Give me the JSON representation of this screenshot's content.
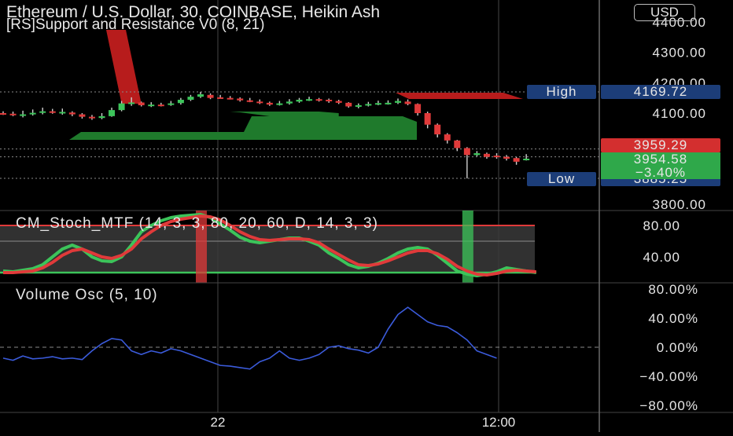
{
  "header": {
    "title": "Ethereum / U.S. Dollar, 30, COINBASE, Heikin Ash",
    "indicator": "[RS]Support and Resistance V0 (8, 21)",
    "currency": "USD"
  },
  "colors": {
    "background": "#000000",
    "up": "#3cc45a",
    "down": "#e03a3a",
    "support_zone": "#1f7a2c",
    "resistance_zone": "#b71c1c",
    "label_bg": "#1c3d78",
    "volume_line": "#3b5bdb"
  },
  "price_labels": {
    "high_tag": "High",
    "high_value": "4169.72",
    "low_tag": "Low",
    "low_value": "3885.25",
    "last_red": "3959.29",
    "last_green": "3954.58",
    "change": "−3.40%"
  },
  "stoch_title": "CM_Stoch_MTF (14, 3, 3, 80, 20, 60, D, 14, 3, 3)",
  "volume_title": "Volume Osc (5, 10)",
  "chart_data": [
    {
      "type": "candlestick",
      "title": "Ethereum / U.S. Dollar, 30, COINBASE, Heikin Ash",
      "y_ticks": [
        "4400.00",
        "4300.00",
        "4200.00",
        "4100.00",
        "3800.00"
      ],
      "ylim": [
        3770,
        4400
      ],
      "x_ticks": [
        "22",
        "12:00"
      ],
      "high": 4169.72,
      "low": 3885.25,
      "candles": [
        {
          "o": 4100,
          "c": 4098,
          "h": 4106,
          "l": 4094
        },
        {
          "o": 4098,
          "c": 4094,
          "h": 4105,
          "l": 4090
        },
        {
          "o": 4092,
          "c": 4096,
          "h": 4108,
          "l": 4086
        },
        {
          "o": 4097,
          "c": 4101,
          "h": 4112,
          "l": 4092
        },
        {
          "o": 4102,
          "c": 4106,
          "h": 4118,
          "l": 4096
        },
        {
          "o": 4106,
          "c": 4104,
          "h": 4114,
          "l": 4098
        },
        {
          "o": 4104,
          "c": 4104,
          "h": 4115,
          "l": 4095
        },
        {
          "o": 4102,
          "c": 4096,
          "h": 4106,
          "l": 4090
        },
        {
          "o": 4096,
          "c": 4088,
          "h": 4100,
          "l": 4082
        },
        {
          "o": 4088,
          "c": 4084,
          "h": 4094,
          "l": 4078
        },
        {
          "o": 4084,
          "c": 4090,
          "h": 4100,
          "l": 4080
        },
        {
          "o": 4090,
          "c": 4110,
          "h": 4118,
          "l": 4088
        },
        {
          "o": 4110,
          "c": 4132,
          "h": 4140,
          "l": 4106
        },
        {
          "o": 4132,
          "c": 4135,
          "h": 4152,
          "l": 4124
        },
        {
          "o": 4135,
          "c": 4126,
          "h": 4138,
          "l": 4122
        },
        {
          "o": 4126,
          "c": 4128,
          "h": 4136,
          "l": 4120
        },
        {
          "o": 4128,
          "c": 4127,
          "h": 4134,
          "l": 4122
        },
        {
          "o": 4128,
          "c": 4132,
          "h": 4140,
          "l": 4124
        },
        {
          "o": 4133,
          "c": 4144,
          "h": 4150,
          "l": 4128
        },
        {
          "o": 4144,
          "c": 4154,
          "h": 4160,
          "l": 4140
        },
        {
          "o": 4154,
          "c": 4162,
          "h": 4170,
          "l": 4150
        },
        {
          "o": 4160,
          "c": 4150,
          "h": 4165,
          "l": 4146
        },
        {
          "o": 4152,
          "c": 4150,
          "h": 4160,
          "l": 4148
        },
        {
          "o": 4150,
          "c": 4148,
          "h": 4156,
          "l": 4145
        },
        {
          "o": 4148,
          "c": 4142,
          "h": 4152,
          "l": 4138
        },
        {
          "o": 4142,
          "c": 4138,
          "h": 4150,
          "l": 4136
        },
        {
          "o": 4138,
          "c": 4134,
          "h": 4145,
          "l": 4130
        },
        {
          "o": 4134,
          "c": 4128,
          "h": 4138,
          "l": 4124
        },
        {
          "o": 4128,
          "c": 4132,
          "h": 4140,
          "l": 4125
        },
        {
          "o": 4132,
          "c": 4138,
          "h": 4146,
          "l": 4128
        },
        {
          "o": 4138,
          "c": 4144,
          "h": 4150,
          "l": 4134
        },
        {
          "o": 4144,
          "c": 4146,
          "h": 4154,
          "l": 4140
        },
        {
          "o": 4146,
          "c": 4144,
          "h": 4150,
          "l": 4138
        },
        {
          "o": 4144,
          "c": 4140,
          "h": 4148,
          "l": 4134
        },
        {
          "o": 4140,
          "c": 4134,
          "h": 4144,
          "l": 4130
        },
        {
          "o": 4134,
          "c": 4122,
          "h": 4136,
          "l": 4118
        },
        {
          "o": 4122,
          "c": 4126,
          "h": 4132,
          "l": 4116
        },
        {
          "o": 4126,
          "c": 4130,
          "h": 4137,
          "l": 4122
        },
        {
          "o": 4130,
          "c": 4133,
          "h": 4141,
          "l": 4126
        },
        {
          "o": 4132,
          "c": 4134,
          "h": 4142,
          "l": 4128
        },
        {
          "o": 4134,
          "c": 4140,
          "h": 4148,
          "l": 4130
        },
        {
          "o": 4138,
          "c": 4130,
          "h": 4145,
          "l": 4126
        },
        {
          "o": 4130,
          "c": 4100,
          "h": 4132,
          "l": 4092
        },
        {
          "o": 4100,
          "c": 4062,
          "h": 4105,
          "l": 4050
        },
        {
          "o": 4062,
          "c": 4030,
          "h": 4066,
          "l": 4020
        },
        {
          "o": 4030,
          "c": 4010,
          "h": 4034,
          "l": 4000
        },
        {
          "o": 4010,
          "c": 3985,
          "h": 4012,
          "l": 3975
        },
        {
          "o": 3985,
          "c": 3962,
          "h": 3988,
          "l": 3885
        },
        {
          "o": 3962,
          "c": 3968,
          "h": 3975,
          "l": 3958
        },
        {
          "o": 3966,
          "c": 3956,
          "h": 3970,
          "l": 3950
        },
        {
          "o": 3960,
          "c": 3956,
          "h": 3968,
          "l": 3950
        },
        {
          "o": 3956,
          "c": 3950,
          "h": 3962,
          "l": 3944
        },
        {
          "o": 3952,
          "c": 3940,
          "h": 3955,
          "l": 3930
        },
        {
          "o": 3946,
          "c": 3950,
          "h": 3965,
          "l": 3944
        }
      ]
    },
    {
      "type": "line",
      "title": "CM_Stoch_MTF (14, 3, 3, 80, 20, 60, D, 14, 3, 3)",
      "y_ticks": [
        "80.00",
        "40.00"
      ],
      "ylim": [
        15,
        100
      ],
      "series": [
        {
          "color": "#3cc45a",
          "values": [
            22,
            21,
            23,
            25,
            30,
            40,
            50,
            55,
            50,
            40,
            35,
            34,
            40,
            55,
            72,
            80,
            86,
            90,
            92,
            93,
            94,
            90,
            82,
            74,
            65,
            60,
            58,
            60,
            62,
            64,
            64,
            60,
            55,
            45,
            38,
            30,
            26,
            28,
            32,
            38,
            45,
            50,
            52,
            50,
            42,
            32,
            22,
            18,
            16,
            18,
            21,
            26,
            24,
            22,
            20
          ]
        },
        {
          "color": "#e03a3a",
          "values": [
            20,
            20,
            21,
            22,
            26,
            33,
            42,
            48,
            50,
            45,
            40,
            38,
            42,
            50,
            63,
            72,
            80,
            85,
            88,
            90,
            92,
            91,
            87,
            80,
            72,
            66,
            62,
            61,
            62,
            63,
            63,
            62,
            58,
            50,
            43,
            36,
            30,
            29,
            31,
            35,
            40,
            45,
            48,
            48,
            44,
            37,
            28,
            22,
            18,
            17,
            19,
            22,
            23,
            22,
            21
          ]
        }
      ],
      "bands": [
        80,
        20
      ],
      "highlights": [
        {
          "index": 20,
          "color": "#e03a3a"
        },
        {
          "index": 47,
          "color": "#3cc45a"
        }
      ]
    },
    {
      "type": "line",
      "title": "Volume Osc (5, 10)",
      "y_ticks": [
        "80.00%",
        "40.00%",
        "0.00%",
        "−40.00%",
        "−80.00%"
      ],
      "ylim": [
        -90,
        90
      ],
      "series": [
        {
          "color": "#3b5bdb",
          "values": [
            -15,
            -18,
            -12,
            -16,
            -15,
            -13,
            -16,
            -15,
            -17,
            -5,
            5,
            12,
            10,
            -5,
            -10,
            -5,
            -8,
            -2,
            -5,
            -10,
            -15,
            -20,
            -25,
            -26,
            -28,
            -30,
            -20,
            -15,
            -5,
            -15,
            -18,
            -15,
            -10,
            0,
            2,
            -2,
            -4,
            -8,
            0,
            25,
            45,
            55,
            45,
            35,
            30,
            28,
            20,
            10,
            -5,
            -10,
            -15
          ]
        }
      ]
    }
  ]
}
